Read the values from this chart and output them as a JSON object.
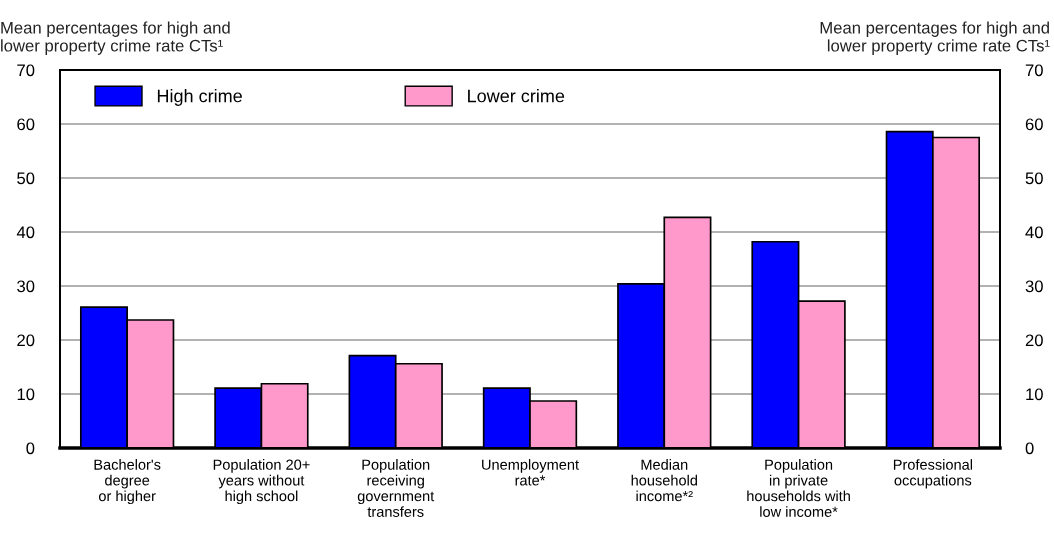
{
  "chart_data": {
    "type": "bar",
    "categories": [
      "Bachelor's\ndegree\nor higher",
      "Population 20+\nyears without\nhigh school",
      "Population\nreceiving\ngovernment\ntransfers",
      "Unemployment\nrate*",
      "Median\nhousehold\nincome*²",
      "Population\nin private\nhouseholds with\nlow income*",
      "Professional\noccupations"
    ],
    "series": [
      {
        "name": "High crime",
        "color": "#0000ff",
        "values": [
          26.1,
          11.1,
          17.1,
          11.1,
          30.4,
          38.2,
          58.6
        ]
      },
      {
        "name": "Lower crime",
        "color": "#ff99cc",
        "values": [
          23.7,
          11.9,
          15.6,
          8.7,
          42.7,
          27.2,
          57.5
        ]
      }
    ],
    "ylabel": "Mean percentages for high and\nlower property crime rate CTs¹",
    "y2label": "Mean percentages for high and\nlower property crime rate CTs¹",
    "ylim": [
      0,
      70
    ],
    "yticks": [
      0,
      10,
      20,
      30,
      40,
      50,
      60,
      70
    ],
    "y2lim": [
      0,
      70
    ],
    "y2ticks": [
      0,
      10,
      20,
      30,
      40,
      50,
      60,
      70
    ],
    "grid": "y",
    "legend": "top left"
  }
}
